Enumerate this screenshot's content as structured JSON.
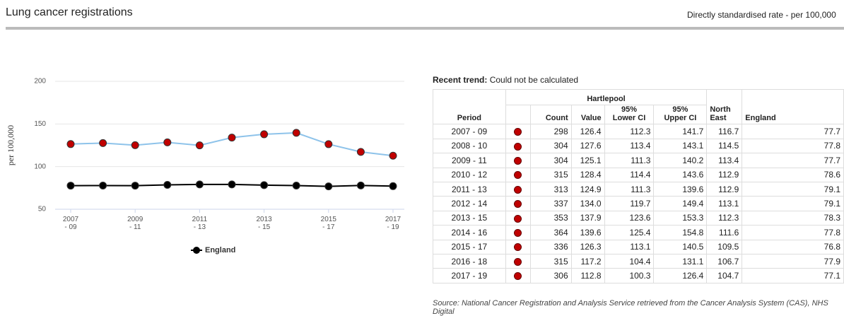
{
  "header": {
    "title": "Lung cancer registrations",
    "subtitle": "Directly standardised rate - per 100,000"
  },
  "chart_data": {
    "type": "line",
    "ylabel": "per 100,000",
    "categories": [
      "2007 - 09",
      null,
      "2009 - 11",
      null,
      "2011 - 13",
      null,
      "2013 - 15",
      null,
      "2015 - 17",
      null,
      "2017 - 19"
    ],
    "series": [
      {
        "color": "#8ec3ea",
        "marker_color": "#c00000",
        "values": [
          126.4,
          127.6,
          125.1,
          128.4,
          124.9,
          134.0,
          137.9,
          139.6,
          126.3,
          117.2,
          112.8
        ]
      },
      {
        "name": "England",
        "color": "#000000",
        "marker_color": "#000000",
        "values": [
          77.7,
          77.8,
          77.7,
          78.6,
          79.1,
          79.1,
          78.3,
          77.8,
          76.8,
          77.9,
          77.1
        ]
      }
    ],
    "ylim": [
      50,
      200
    ],
    "yticks": [
      50,
      100,
      150,
      200
    ],
    "grid": true,
    "legend": "bottom"
  },
  "trend": {
    "label": "Recent trend:",
    "text": "Could not be calculated"
  },
  "table": {
    "group": "Hartlepool",
    "columns": [
      "Period",
      "Count",
      "Value",
      "95% Lower CI",
      "95% Upper CI",
      "North East",
      "England"
    ],
    "rows": [
      [
        "2007 - 09",
        "298",
        "126.4",
        "112.3",
        "141.7",
        "116.7",
        "77.7"
      ],
      [
        "2008 - 10",
        "304",
        "127.6",
        "113.4",
        "143.1",
        "114.5",
        "77.8"
      ],
      [
        "2009 - 11",
        "304",
        "125.1",
        "111.3",
        "140.2",
        "113.4",
        "77.7"
      ],
      [
        "2010 - 12",
        "315",
        "128.4",
        "114.4",
        "143.6",
        "112.9",
        "78.6"
      ],
      [
        "2011 - 13",
        "313",
        "124.9",
        "111.3",
        "139.6",
        "112.9",
        "79.1"
      ],
      [
        "2012 - 14",
        "337",
        "134.0",
        "119.7",
        "149.4",
        "113.1",
        "79.1"
      ],
      [
        "2013 - 15",
        "353",
        "137.9",
        "123.6",
        "153.3",
        "112.3",
        "78.3"
      ],
      [
        "2014 - 16",
        "364",
        "139.6",
        "125.4",
        "154.8",
        "111.6",
        "77.8"
      ],
      [
        "2015 - 17",
        "336",
        "126.3",
        "113.1",
        "140.5",
        "109.5",
        "76.8"
      ],
      [
        "2016 - 18",
        "315",
        "117.2",
        "104.4",
        "131.1",
        "106.7",
        "77.9"
      ],
      [
        "2017 - 19",
        "306",
        "112.8",
        "100.3",
        "126.4",
        "104.7",
        "77.1"
      ]
    ]
  },
  "source": "Source: National Cancer Registration and Analysis Service retrieved from the Cancer Analysis System (CAS), NHS Digital"
}
